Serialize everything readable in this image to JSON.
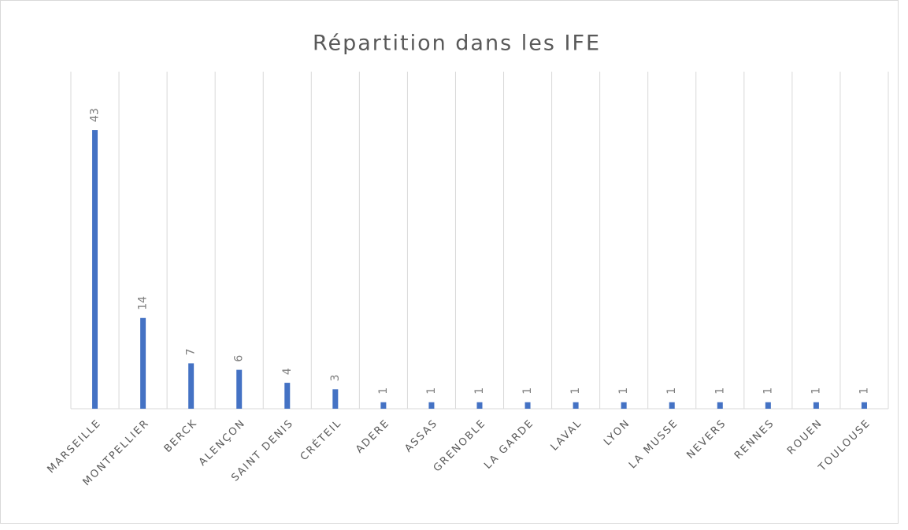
{
  "chart_data": {
    "type": "bar",
    "title": "Répartition dans les IFE",
    "categories": [
      "MARSEILLE",
      "MONTPELLIER",
      "BERCK",
      "ALENÇON",
      "SAINT DENIS",
      "CRÉTEIL",
      "ADERE",
      "ASSAS",
      "GRENOBLE",
      "LA GARDE",
      "LAVAL",
      "LYON",
      "LA MUSSE",
      "NEVERS",
      "RENNES",
      "ROUEN",
      "TOULOUSE"
    ],
    "values": [
      43,
      14,
      7,
      6,
      4,
      3,
      1,
      1,
      1,
      1,
      1,
      1,
      1,
      1,
      1,
      1,
      1
    ],
    "color": "#4472c4",
    "ylim": [
      0,
      52
    ]
  }
}
